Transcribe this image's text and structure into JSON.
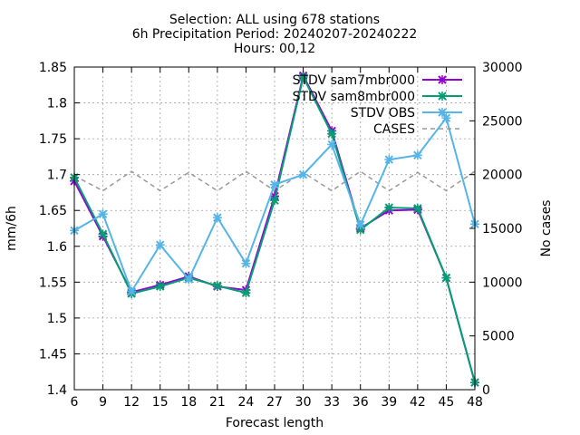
{
  "chart_data": {
    "type": "line",
    "title_lines": [
      "Selection: ALL using   678 stations",
      "6h Precipitation   Period: 20240207-20240222",
      "Hours: 00,12"
    ],
    "xlabel": "Forecast length",
    "ylabel": "mm/6h",
    "y2label": "No cases",
    "x": [
      6,
      9,
      12,
      15,
      18,
      21,
      24,
      27,
      30,
      33,
      36,
      39,
      42,
      45,
      48
    ],
    "xlim": [
      6,
      48
    ],
    "ylim": [
      1.4,
      1.85
    ],
    "y2lim": [
      0,
      30000
    ],
    "yticks": [
      "1.4",
      "1.45",
      "1.5",
      "1.55",
      "1.6",
      "1.65",
      "1.7",
      "1.75",
      "1.8",
      "1.85"
    ],
    "y2ticks": [
      "0",
      "5000",
      "10000",
      "15000",
      "20000",
      "25000",
      "30000"
    ],
    "grid": true,
    "legend_position": "top-right",
    "series": [
      {
        "name": "STDV sam7mbr000",
        "color": "#9400d3",
        "marker": "x",
        "axis": "left",
        "values": [
          1.691,
          1.614,
          1.536,
          1.546,
          1.558,
          1.544,
          1.539,
          1.67,
          1.838,
          1.761,
          1.625,
          1.65,
          1.651,
          1.556,
          1.41
        ]
      },
      {
        "name": "STDV sam8mbr000",
        "color": "#009e73",
        "marker": "x",
        "axis": "left",
        "values": [
          1.696,
          1.617,
          1.534,
          1.544,
          1.556,
          1.545,
          1.535,
          1.664,
          1.836,
          1.757,
          1.623,
          1.654,
          1.653,
          1.556,
          1.41
        ]
      },
      {
        "name": "STDV OBS",
        "color": "#56b4e9",
        "marker": "x",
        "axis": "left",
        "values": [
          1.622,
          1.645,
          1.537,
          1.602,
          1.554,
          1.64,
          1.576,
          1.686,
          1.7,
          1.742,
          1.63,
          1.721,
          1.727,
          1.779,
          1.631
        ]
      },
      {
        "name": "CASES",
        "color": "#999999",
        "dashed": true,
        "axis": "right",
        "values": [
          19900,
          18500,
          20300,
          18500,
          20200,
          18500,
          20300,
          18500,
          20200,
          18500,
          20300,
          18500,
          20200,
          18500,
          20300
        ]
      }
    ]
  }
}
